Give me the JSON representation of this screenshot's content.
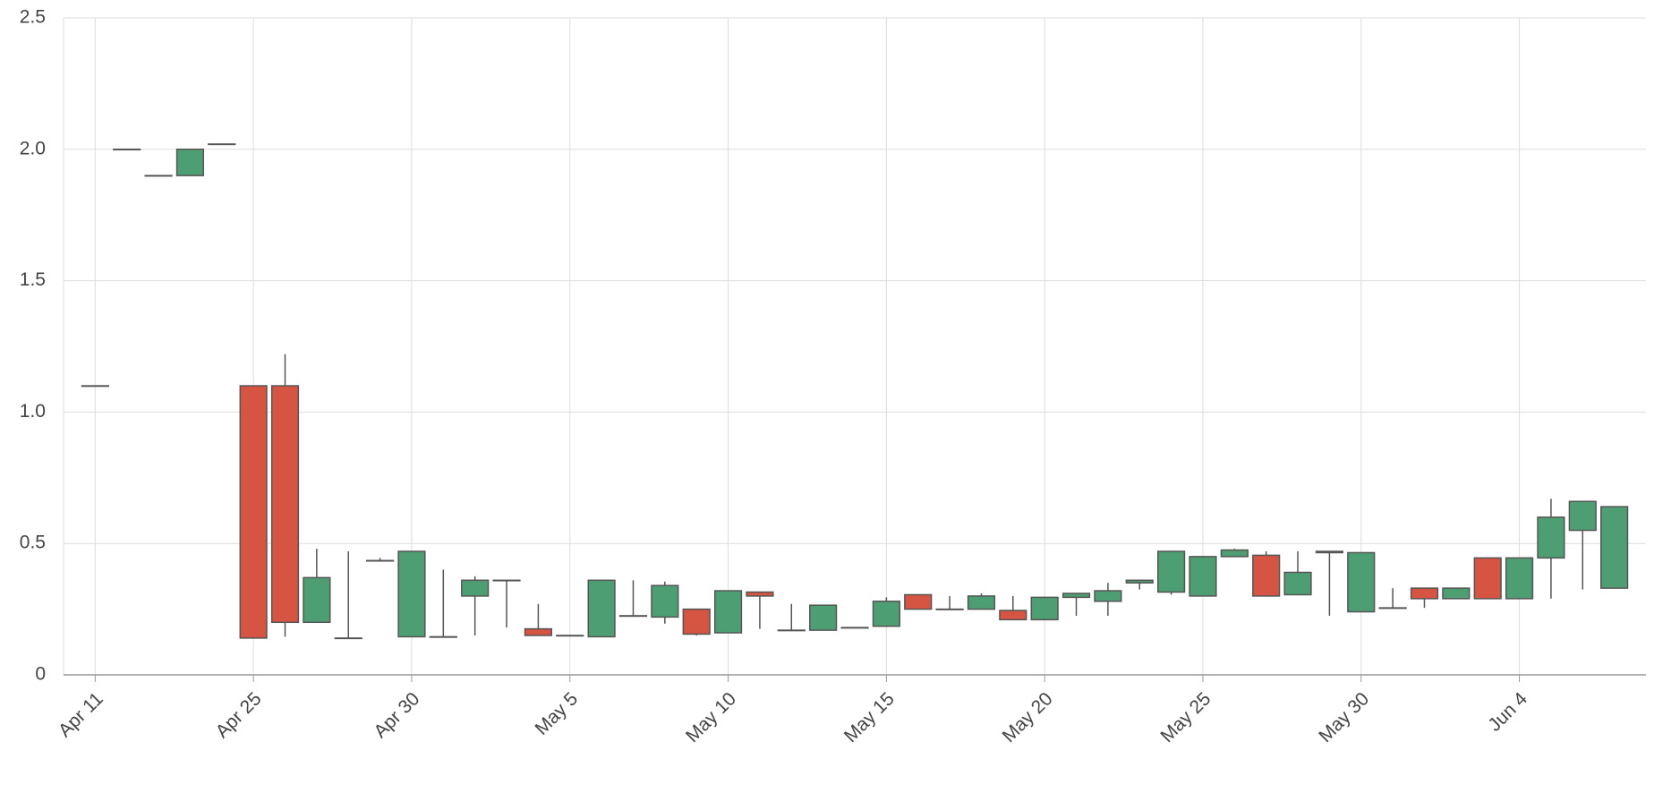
{
  "chart_data": {
    "type": "candlestick",
    "categories": [
      "Apr 11",
      null,
      null,
      null,
      null,
      "Apr 25",
      null,
      null,
      null,
      null,
      "Apr 30",
      null,
      null,
      null,
      null,
      "May 5",
      null,
      null,
      null,
      null,
      "May 10",
      null,
      null,
      null,
      null,
      "May 15",
      null,
      null,
      null,
      null,
      "May 20",
      null,
      null,
      null,
      null,
      "May 25",
      null,
      null,
      null,
      null,
      "May 30",
      null,
      null,
      null,
      null,
      "Jun 4",
      null,
      null,
      null
    ],
    "open": [
      1.1,
      2.0,
      1.9,
      1.9,
      2.02,
      1.1,
      1.1,
      0.2,
      0.14,
      0.435,
      0.145,
      0.145,
      0.3,
      0.36,
      0.175,
      0.15,
      0.145,
      0.225,
      0.22,
      0.25,
      0.16,
      0.315,
      0.17,
      0.17,
      0.18,
      0.185,
      0.305,
      0.25,
      0.25,
      0.245,
      0.21,
      0.295,
      0.28,
      0.35,
      0.315,
      0.3,
      0.45,
      0.455,
      0.305,
      0.465,
      0.24,
      0.255,
      0.33,
      0.29,
      0.445,
      0.29,
      0.445,
      0.55,
      0.33
    ],
    "high": [
      1.1,
      2.0,
      1.9,
      2.0,
      2.02,
      1.1,
      1.22,
      0.48,
      0.47,
      0.445,
      0.47,
      0.4,
      0.375,
      0.36,
      0.27,
      0.15,
      0.36,
      0.36,
      0.355,
      0.25,
      0.32,
      0.315,
      0.27,
      0.265,
      0.18,
      0.295,
      0.305,
      0.3,
      0.31,
      0.3,
      0.295,
      0.31,
      0.35,
      0.36,
      0.47,
      0.45,
      0.48,
      0.47,
      0.47,
      0.47,
      0.465,
      0.33,
      0.33,
      0.33,
      0.445,
      0.445,
      0.67,
      0.66,
      0.64
    ],
    "low": [
      1.1,
      2.0,
      1.9,
      1.9,
      2.02,
      0.14,
      0.145,
      0.2,
      0.14,
      0.435,
      0.145,
      0.145,
      0.15,
      0.18,
      0.15,
      0.15,
      0.145,
      0.225,
      0.195,
      0.15,
      0.16,
      0.175,
      0.17,
      0.17,
      0.18,
      0.185,
      0.25,
      0.25,
      0.25,
      0.21,
      0.21,
      0.225,
      0.225,
      0.325,
      0.305,
      0.3,
      0.45,
      0.3,
      0.305,
      0.225,
      0.24,
      0.255,
      0.255,
      0.29,
      0.29,
      0.29,
      0.29,
      0.325,
      0.33
    ],
    "close": [
      1.1,
      2.0,
      1.9,
      2.0,
      2.02,
      0.14,
      0.2,
      0.37,
      0.14,
      0.435,
      0.47,
      0.145,
      0.36,
      0.36,
      0.15,
      0.15,
      0.36,
      0.225,
      0.34,
      0.155,
      0.32,
      0.3,
      0.17,
      0.265,
      0.18,
      0.28,
      0.25,
      0.25,
      0.3,
      0.21,
      0.295,
      0.31,
      0.32,
      0.36,
      0.47,
      0.45,
      0.475,
      0.3,
      0.39,
      0.47,
      0.465,
      0.255,
      0.29,
      0.33,
      0.29,
      0.445,
      0.6,
      0.66,
      0.64
    ],
    "up_color": "#4e9e74",
    "down_color": "#d65442",
    "edge_color": "#555555",
    "ylim": [
      0,
      2.5
    ],
    "yticks": [
      0,
      0.5,
      {
        "value": 1,
        "label": "1.0"
      },
      1.5,
      {
        "value": 2,
        "label": "2.0"
      },
      2.5
    ],
    "grid": true
  }
}
